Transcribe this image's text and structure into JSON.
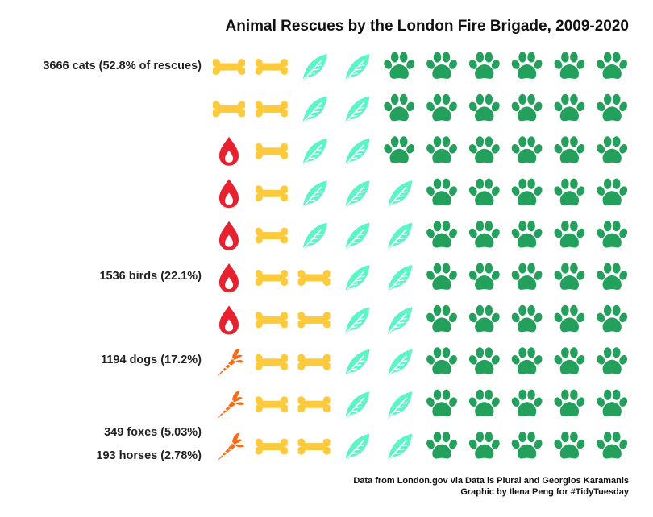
{
  "chart_data": {
    "type": "waffle",
    "title": "Animal Rescues by the London Fire Brigade, 2009-2020",
    "grid": {
      "columns": 10,
      "rows": 10,
      "fill_order": "top-to-bottom, right-to-left"
    },
    "categories": [
      {
        "name": "cats",
        "count": 3666,
        "percent": 52.8,
        "cells": 53,
        "label": "3666 cats (52.8% of rescues)",
        "icon": "paw-icon",
        "color": "#23a05c"
      },
      {
        "name": "birds",
        "count": 1536,
        "percent": 22.1,
        "cells": 22,
        "label": "1536 birds (22.1%)",
        "icon": "feather-icon",
        "color": "#5cf5c8"
      },
      {
        "name": "dogs",
        "count": 1194,
        "percent": 17.2,
        "cells": 17,
        "label": "1194 dogs (17.2%)",
        "icon": "bone-icon",
        "color": "#fcca3c"
      },
      {
        "name": "foxes",
        "count": 349,
        "percent": 5.03,
        "cells": 5,
        "label": "349 foxes (5.03%)",
        "icon": "flame-icon",
        "color": "#e8212e"
      },
      {
        "name": "horses",
        "count": 193,
        "percent": 2.78,
        "cells": 3,
        "label": "193 horses (2.78%)",
        "icon": "carrot-icon",
        "color": "#fa6b14"
      }
    ]
  },
  "caption": {
    "line1": "Data from London.gov via Data is Plural and Georgios Karamanis",
    "line2": "Graphic by Ilena Peng for #TidyTuesday"
  }
}
